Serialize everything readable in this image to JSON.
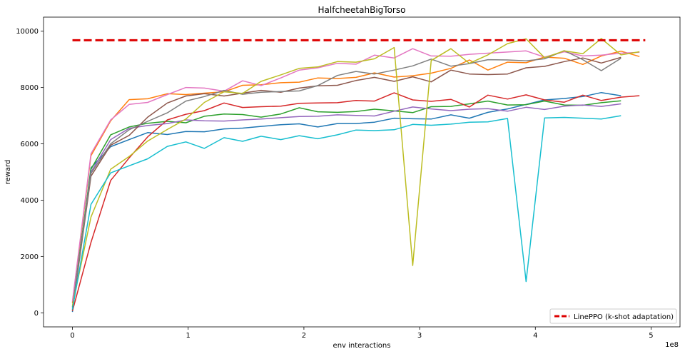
{
  "chart_data": {
    "type": "line",
    "title": "HalfcheetahBigTorso",
    "xlabel": "env interactions",
    "ylabel": "reward",
    "x_offset_label": "1e8",
    "xlim": [
      -0.25,
      5.25
    ],
    "ylim": [
      -500,
      10500
    ],
    "x_ticks": [
      0,
      1,
      2,
      3,
      4,
      5
    ],
    "y_ticks": [
      0,
      2000,
      4000,
      6000,
      8000,
      10000
    ],
    "grid": false,
    "legend_position": "lower-right",
    "baseline": {
      "name": "LinePPO (k-shot adaptation)",
      "value": 9680,
      "x_range": [
        0,
        4.95
      ],
      "color": "#dd0000",
      "style": "dashed"
    },
    "series": [
      {
        "color": "#1f77b4",
        "x": [
          0,
          0.16,
          0.33,
          0.49,
          0.65,
          0.82,
          0.98,
          1.14,
          1.31,
          1.47,
          1.63,
          1.8,
          1.96,
          2.12,
          2.29,
          2.45,
          2.61,
          2.78,
          2.94,
          3.1,
          3.27,
          3.43,
          3.59,
          3.76,
          3.92,
          4.08,
          4.25,
          4.41,
          4.57,
          4.74
        ],
        "values": [
          30,
          5150,
          5900,
          6150,
          6400,
          6330,
          6440,
          6430,
          6530,
          6560,
          6620,
          6680,
          6710,
          6600,
          6720,
          6720,
          6770,
          6910,
          6890,
          6880,
          7030,
          6910,
          7120,
          7240,
          7400,
          7560,
          7610,
          7680,
          7820,
          7710
        ]
      },
      {
        "color": "#ff7f0e",
        "x": [
          0,
          0.16,
          0.33,
          0.49,
          0.65,
          0.82,
          0.98,
          1.14,
          1.31,
          1.47,
          1.63,
          1.8,
          1.96,
          2.12,
          2.29,
          2.45,
          2.61,
          2.78,
          2.94,
          3.1,
          3.27,
          3.43,
          3.59,
          3.76,
          3.92,
          4.08,
          4.25,
          4.41,
          4.57,
          4.74,
          4.9
        ],
        "values": [
          350,
          5580,
          6820,
          7570,
          7600,
          7780,
          7750,
          7800,
          7850,
          8080,
          8100,
          8170,
          8190,
          8340,
          8320,
          8360,
          8520,
          8370,
          8420,
          8510,
          8680,
          8980,
          8620,
          8900,
          8880,
          9080,
          9040,
          8820,
          9120,
          9290,
          9100
        ]
      },
      {
        "color": "#2ca02c",
        "x": [
          0,
          0.16,
          0.33,
          0.49,
          0.65,
          0.82,
          0.98,
          1.14,
          1.31,
          1.47,
          1.63,
          1.8,
          1.96,
          2.12,
          2.29,
          2.45,
          2.61,
          2.78,
          2.94,
          3.1,
          3.27,
          3.43,
          3.59,
          3.76,
          3.92,
          4.08,
          4.25,
          4.41,
          4.57,
          4.74
        ],
        "values": [
          200,
          5100,
          6320,
          6600,
          6730,
          6800,
          6750,
          6980,
          7060,
          7040,
          6950,
          7060,
          7280,
          7140,
          7120,
          7150,
          7230,
          7170,
          7110,
          7320,
          7330,
          7420,
          7520,
          7380,
          7390,
          7520,
          7380,
          7370,
          7460,
          7530
        ]
      },
      {
        "color": "#d62728",
        "x": [
          0,
          0.16,
          0.33,
          0.49,
          0.65,
          0.82,
          0.98,
          1.14,
          1.31,
          1.47,
          1.63,
          1.8,
          1.96,
          2.12,
          2.29,
          2.45,
          2.61,
          2.78,
          2.94,
          3.1,
          3.27,
          3.43,
          3.59,
          3.76,
          3.92,
          4.08,
          4.25,
          4.41,
          4.57,
          4.74,
          4.9
        ],
        "values": [
          60,
          2500,
          4700,
          5500,
          6250,
          6850,
          7050,
          7180,
          7450,
          7290,
          7320,
          7340,
          7440,
          7450,
          7460,
          7540,
          7520,
          7810,
          7560,
          7510,
          7580,
          7310,
          7730,
          7590,
          7740,
          7560,
          7480,
          7730,
          7540,
          7660,
          7710
        ]
      },
      {
        "color": "#9467bd",
        "x": [
          0,
          0.16,
          0.33,
          0.49,
          0.65,
          0.82,
          0.98,
          1.14,
          1.31,
          1.47,
          1.63,
          1.8,
          1.96,
          2.12,
          2.29,
          2.45,
          2.61,
          2.78,
          2.94,
          3.1,
          3.27,
          3.43,
          3.59,
          3.76,
          3.92,
          4.08,
          4.25,
          4.41,
          4.57,
          4.74
        ],
        "values": [
          100,
          5000,
          6150,
          6550,
          6650,
          6720,
          6850,
          6820,
          6810,
          6850,
          6880,
          6930,
          6970,
          6980,
          7030,
          7010,
          6990,
          7160,
          7310,
          7240,
          7180,
          7230,
          7250,
          7160,
          7300,
          7220,
          7340,
          7380,
          7330,
          7420
        ]
      },
      {
        "color": "#8c564b",
        "x": [
          0,
          0.16,
          0.33,
          0.49,
          0.65,
          0.82,
          0.98,
          1.14,
          1.31,
          1.47,
          1.63,
          1.8,
          1.96,
          2.12,
          2.29,
          2.45,
          2.61,
          2.78,
          2.94,
          3.1,
          3.27,
          3.43,
          3.59,
          3.76,
          3.92,
          4.08,
          4.25,
          4.41,
          4.57,
          4.74
        ],
        "values": [
          80,
          4850,
          5950,
          6300,
          6950,
          7450,
          7700,
          7780,
          7700,
          7800,
          7900,
          7830,
          7980,
          8060,
          8080,
          8250,
          8360,
          8220,
          8380,
          8200,
          8620,
          8480,
          8460,
          8480,
          8700,
          8750,
          8920,
          9050,
          8870,
          9070
        ]
      },
      {
        "color": "#e377c2",
        "x": [
          0,
          0.16,
          0.33,
          0.49,
          0.65,
          0.82,
          0.98,
          1.14,
          1.31,
          1.47,
          1.63,
          1.8,
          1.96,
          2.12,
          2.29,
          2.45,
          2.61,
          2.78,
          2.94,
          3.1,
          3.27,
          3.43,
          3.59,
          3.76,
          3.92,
          4.08,
          4.25,
          4.41,
          4.57,
          4.74,
          4.9
        ],
        "values": [
          400,
          5650,
          6850,
          7400,
          7470,
          7750,
          8000,
          7980,
          7870,
          8240,
          8070,
          8340,
          8620,
          8700,
          8860,
          8830,
          9150,
          9050,
          9380,
          9120,
          9110,
          9180,
          9220,
          9260,
          9300,
          9080,
          9270,
          9120,
          9150,
          9220,
          9250
        ]
      },
      {
        "color": "#7f7f7f",
        "x": [
          0,
          0.16,
          0.33,
          0.49,
          0.65,
          0.82,
          0.98,
          1.14,
          1.31,
          1.47,
          1.63,
          1.8,
          1.96,
          2.12,
          2.29,
          2.45,
          2.61,
          2.78,
          2.94,
          3.1,
          3.27,
          3.43,
          3.59,
          3.76,
          3.92,
          4.08,
          4.25,
          4.41,
          4.57,
          4.74
        ],
        "values": [
          150,
          4950,
          6000,
          6500,
          6800,
          7100,
          7520,
          7680,
          7900,
          7760,
          7830,
          7860,
          7880,
          8070,
          8430,
          8570,
          8480,
          8620,
          8770,
          9010,
          8760,
          8850,
          8990,
          8980,
          8950,
          9020,
          9310,
          8990,
          8600,
          9040
        ]
      },
      {
        "color": "#bcbd22",
        "x": [
          0,
          0.16,
          0.33,
          0.49,
          0.65,
          0.82,
          0.98,
          1.14,
          1.31,
          1.47,
          1.63,
          1.8,
          1.96,
          2.12,
          2.29,
          2.45,
          2.61,
          2.78,
          2.94,
          3.1,
          3.27,
          3.43,
          3.59,
          3.76,
          3.92,
          4.08,
          4.25,
          4.41,
          4.57,
          4.74,
          4.9
        ],
        "values": [
          250,
          3400,
          5100,
          5550,
          6100,
          6510,
          6880,
          7470,
          7850,
          7790,
          8220,
          8450,
          8680,
          8730,
          8920,
          8900,
          9020,
          9420,
          1680,
          8960,
          9380,
          8860,
          9160,
          9560,
          9730,
          9060,
          9300,
          9200,
          9740,
          9160,
          9270
        ]
      },
      {
        "color": "#17becf",
        "x": [
          0,
          0.16,
          0.33,
          0.49,
          0.65,
          0.82,
          0.98,
          1.14,
          1.31,
          1.47,
          1.63,
          1.8,
          1.96,
          2.12,
          2.29,
          2.45,
          2.61,
          2.78,
          2.94,
          3.1,
          3.27,
          3.43,
          3.59,
          3.76,
          3.92,
          4.08,
          4.25,
          4.41,
          4.57,
          4.74
        ],
        "values": [
          120,
          3850,
          4970,
          5220,
          5470,
          5910,
          6070,
          5840,
          6220,
          6090,
          6270,
          6150,
          6290,
          6180,
          6320,
          6490,
          6470,
          6500,
          6690,
          6660,
          6700,
          6770,
          6780,
          6900,
          1110,
          6920,
          6940,
          6910,
          6880,
          7000
        ]
      }
    ]
  }
}
